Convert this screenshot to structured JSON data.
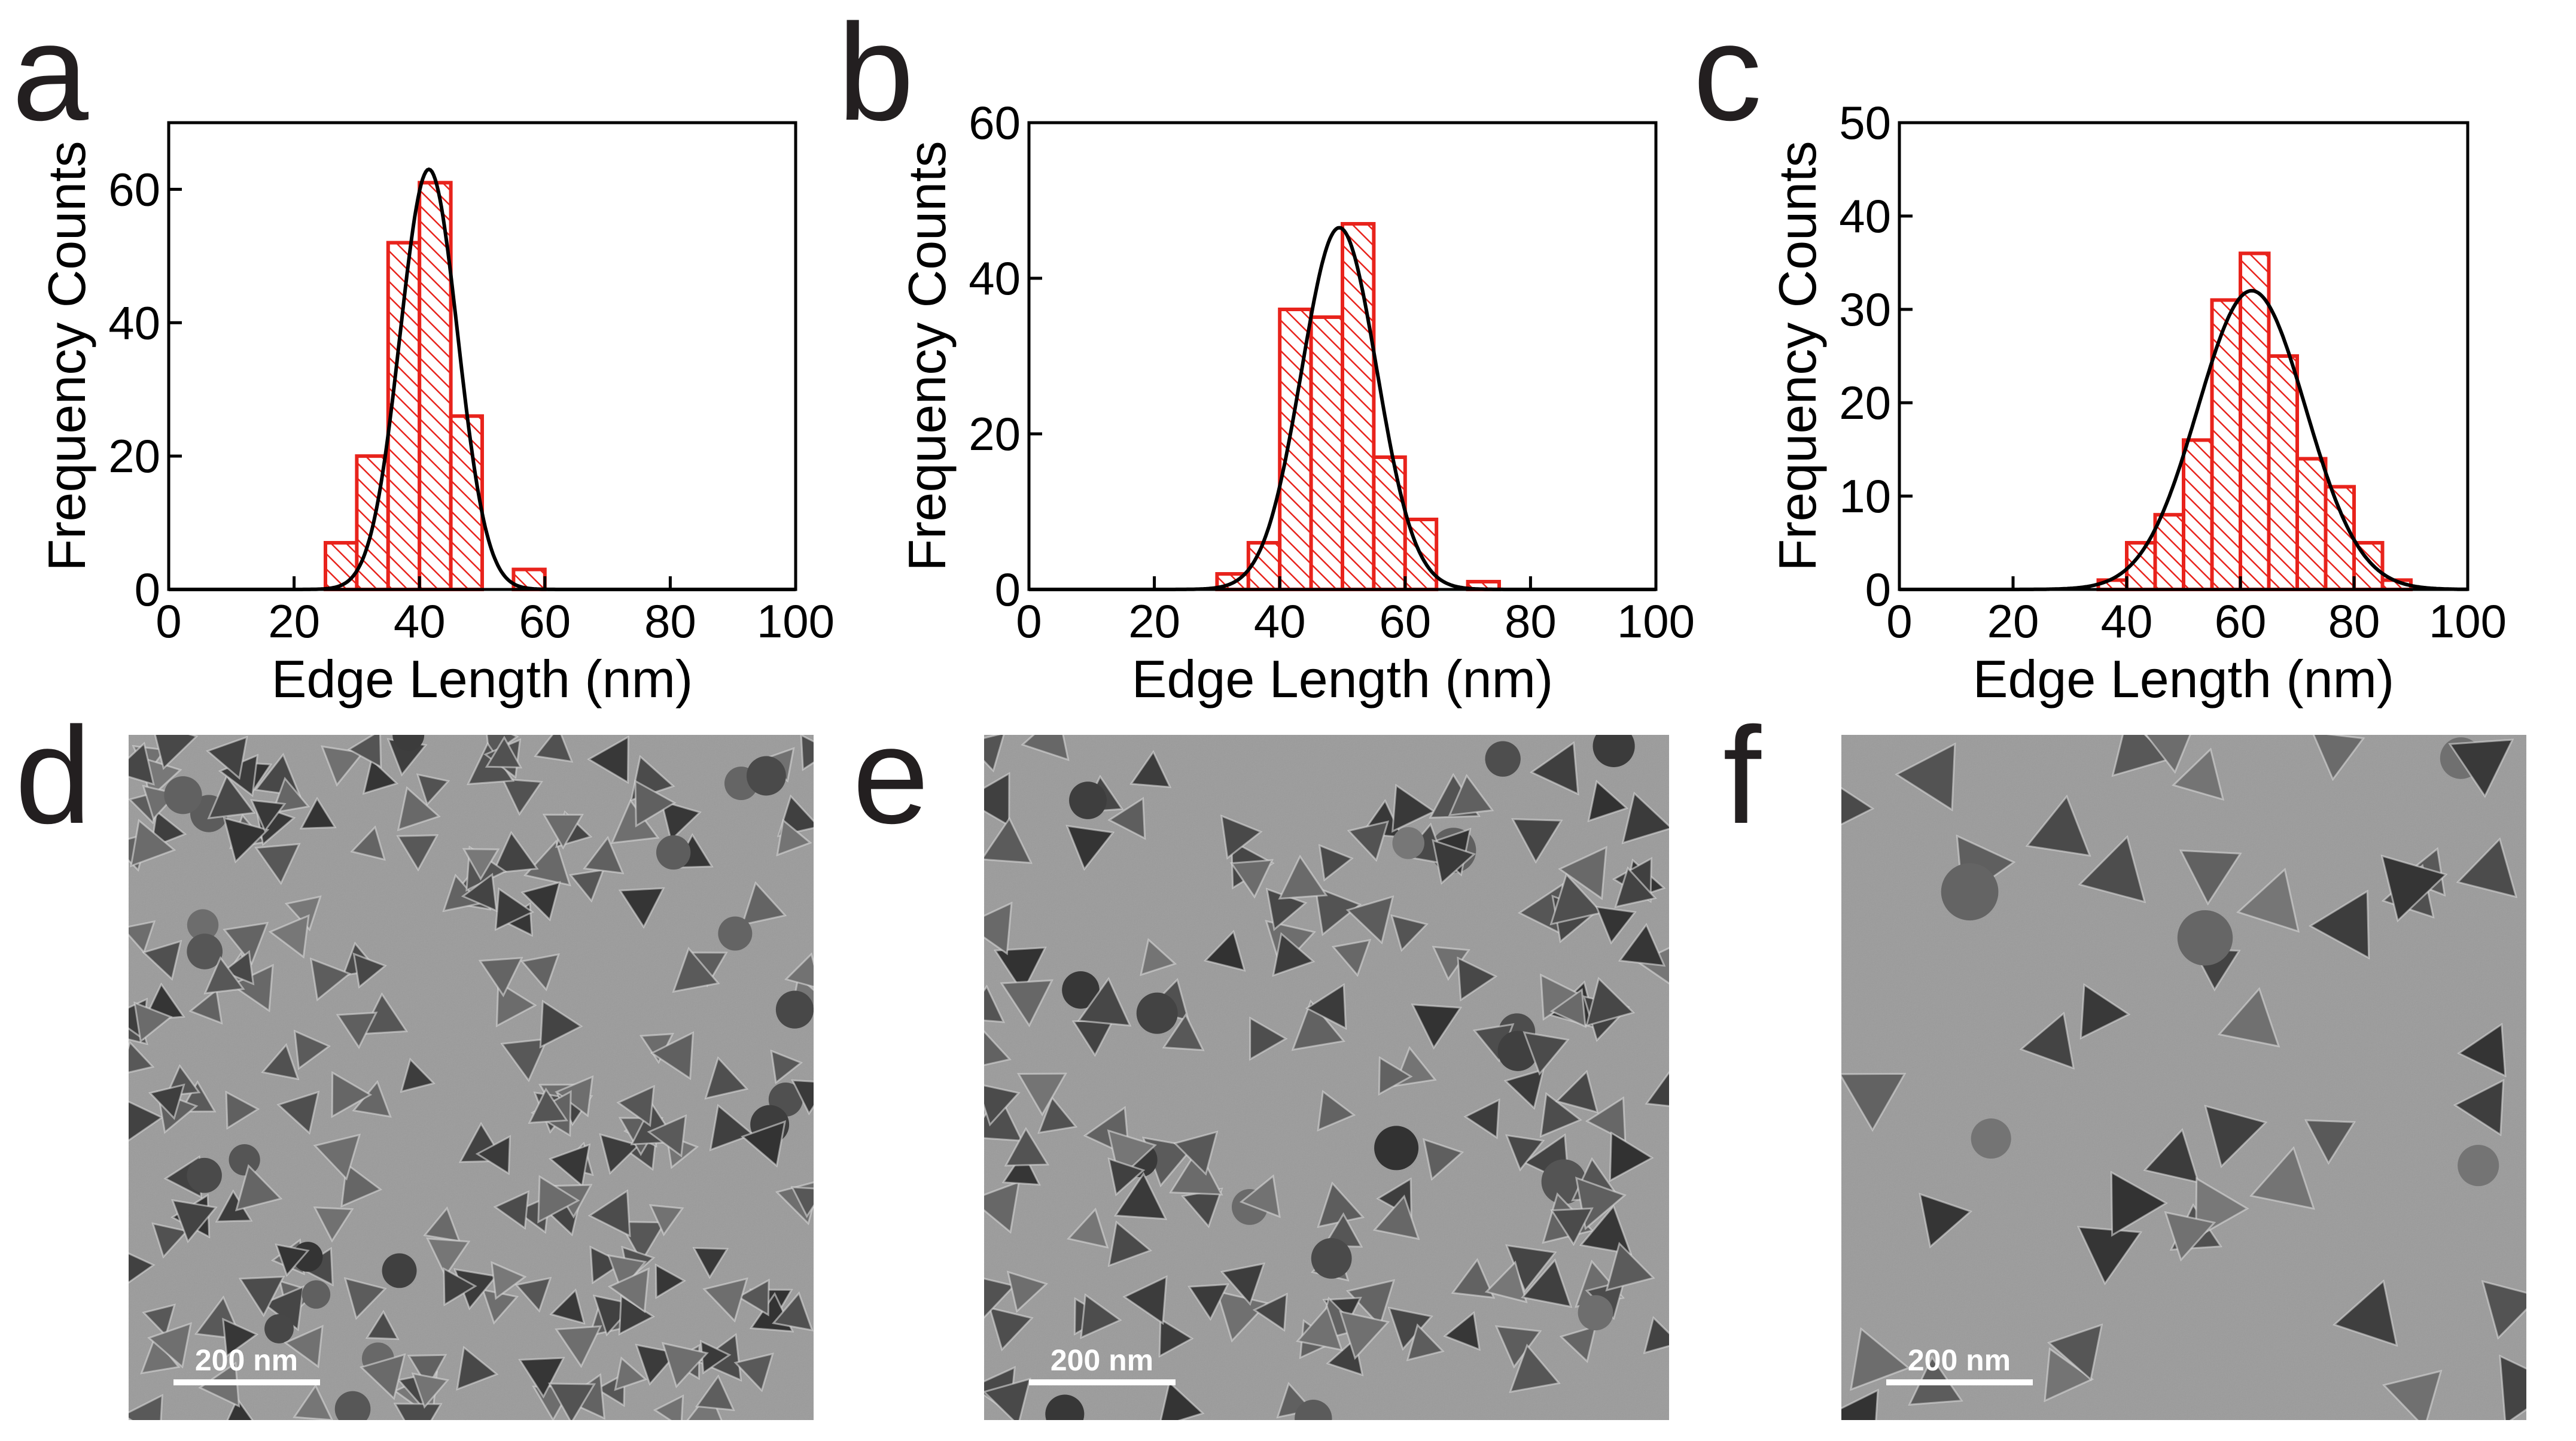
{
  "panels": {
    "a": "a",
    "b": "b",
    "c": "c",
    "d": "d",
    "e": "e",
    "f": "f"
  },
  "chart_data": [
    {
      "type": "bar",
      "panel": "a",
      "xlabel": "Edge Length (nm)",
      "ylabel": "Frequency Counts",
      "xlim": [
        0,
        100
      ],
      "ylim": [
        0,
        70
      ],
      "xticks": [
        0,
        20,
        40,
        60,
        80,
        100
      ],
      "yticks": [
        0,
        20,
        40,
        60
      ],
      "bin_width": 5,
      "bins": [
        {
          "x": 25,
          "value": 7
        },
        {
          "x": 30,
          "value": 20
        },
        {
          "x": 35,
          "value": 52
        },
        {
          "x": 40,
          "value": 61
        },
        {
          "x": 45,
          "value": 26
        },
        {
          "x": 55,
          "value": 3
        }
      ],
      "fit": {
        "type": "gaussian",
        "center": 41.5,
        "amplitude": 63,
        "sigma": 4.6
      }
    },
    {
      "type": "bar",
      "panel": "b",
      "xlabel": "Edge Length (nm)",
      "ylabel": "Frequency Counts",
      "xlim": [
        0,
        100
      ],
      "ylim": [
        0,
        60
      ],
      "xticks": [
        0,
        20,
        40,
        60,
        80,
        100
      ],
      "yticks": [
        0,
        20,
        40,
        60
      ],
      "bin_width": 5,
      "bins": [
        {
          "x": 30,
          "value": 2
        },
        {
          "x": 35,
          "value": 6
        },
        {
          "x": 40,
          "value": 36
        },
        {
          "x": 45,
          "value": 35
        },
        {
          "x": 50,
          "value": 47
        },
        {
          "x": 55,
          "value": 17
        },
        {
          "x": 60,
          "value": 9
        },
        {
          "x": 70,
          "value": 1
        }
      ],
      "fit": {
        "type": "gaussian",
        "center": 49.5,
        "amplitude": 46.5,
        "sigma": 6.0
      }
    },
    {
      "type": "bar",
      "panel": "c",
      "xlabel": "Edge Length (nm)",
      "ylabel": "Frequency Counts",
      "xlim": [
        0,
        100
      ],
      "ylim": [
        0,
        50
      ],
      "xticks": [
        0,
        20,
        40,
        60,
        80,
        100
      ],
      "yticks": [
        0,
        10,
        20,
        30,
        40,
        50
      ],
      "bin_width": 5,
      "bins": [
        {
          "x": 35,
          "value": 1
        },
        {
          "x": 40,
          "value": 5
        },
        {
          "x": 45,
          "value": 8
        },
        {
          "x": 50,
          "value": 16
        },
        {
          "x": 55,
          "value": 31
        },
        {
          "x": 60,
          "value": 36
        },
        {
          "x": 65,
          "value": 25
        },
        {
          "x": 70,
          "value": 14
        },
        {
          "x": 75,
          "value": 11
        },
        {
          "x": 80,
          "value": 5
        },
        {
          "x": 85,
          "value": 1
        }
      ],
      "fit": {
        "type": "gaussian",
        "center": 62,
        "amplitude": 32,
        "sigma": 9.5
      }
    }
  ],
  "micrographs": [
    {
      "panel": "d",
      "scale_label": "200 nm",
      "shape_count": 230
    },
    {
      "panel": "e",
      "scale_label": "200 nm",
      "shape_count": 160
    },
    {
      "panel": "f",
      "scale_label": "200 nm",
      "shape_count": 48
    }
  ],
  "colors": {
    "bar_edge": "#e8231c",
    "fit_line": "#000000",
    "micrograph_bg": "#9a9a9a",
    "particle": "#4d4d4d"
  }
}
